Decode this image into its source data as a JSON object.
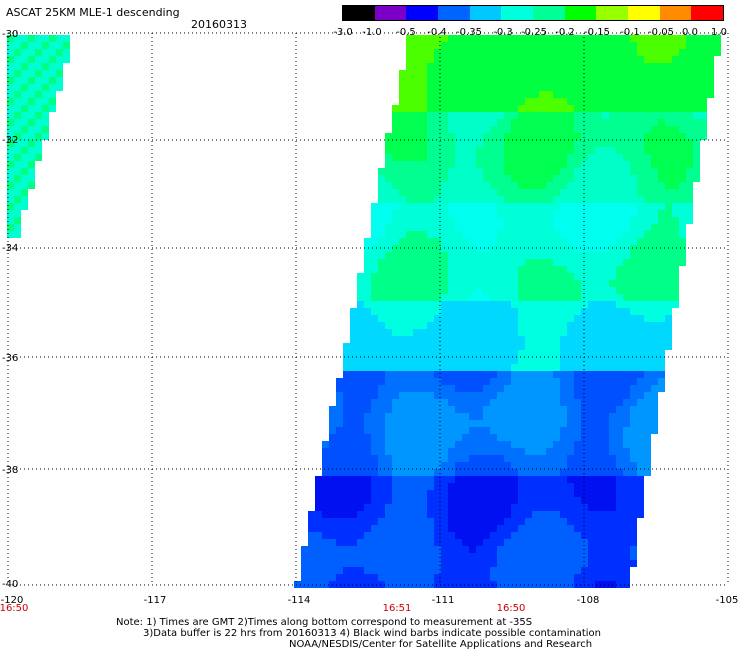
{
  "title": "ASCAT 25KM MLE-1 descending",
  "date": "20160313",
  "colorbar": {
    "labels": [
      "-3.0",
      "-1.0",
      "-0.5",
      "-0.4",
      "-0.35",
      "-0.3",
      "-0.25",
      "-0.2",
      "-0.15",
      "-0.1",
      "-0.05",
      "0.0",
      "1.0"
    ],
    "colors": [
      "#000000",
      "#7a00c8",
      "#0000ff",
      "#0064ff",
      "#00c8ff",
      "#00ffdc",
      "#00ff96",
      "#00ff00",
      "#96ff00",
      "#ffff00",
      "#ff8c00",
      "#ff0000"
    ]
  },
  "lat_labels": [
    "-30",
    "-32",
    "-34",
    "-36",
    "-38",
    "-40"
  ],
  "lon_labels": [
    "-120",
    "-117",
    "-114",
    "-111",
    "-108",
    "-105"
  ],
  "time_labels": [
    "16:50",
    "16:51",
    "16:50"
  ],
  "notes": {
    "line1": "Note: 1) Times are GMT 2)Times along bottom correspond to measurement at -35S",
    "line2": "3)Data buffer is 22 hrs from 20160313 4) Black wind barbs indicate possible contamination",
    "line3": "NOAA/NESDIS/Center for Satellite Applications and Research"
  }
}
